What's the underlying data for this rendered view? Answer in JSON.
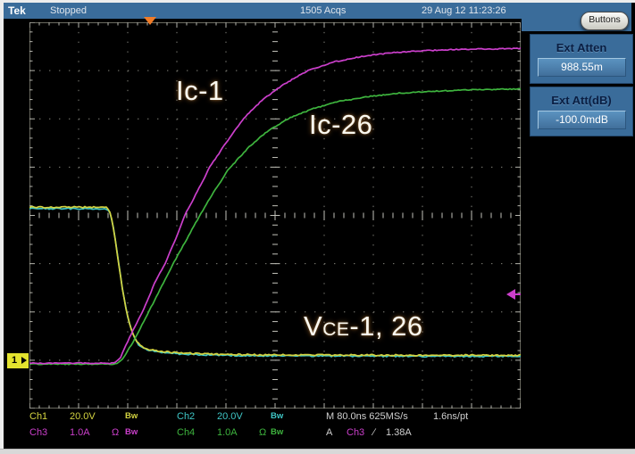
{
  "titlebar": {
    "logo": "Tek",
    "status": "Stopped",
    "acquisitions": "1505 Acqs",
    "datetime": "29 Aug 12 11:23:26",
    "buttons_label": "Buttons"
  },
  "side_panel": {
    "controls": [
      {
        "label": "Ext Atten",
        "value": "988.55m"
      },
      {
        "label": "Ext Att(dB)",
        "value": "-100.0mdB"
      }
    ]
  },
  "plot_labels": {
    "ic1": "Ic-1",
    "ic26": "Ic-26",
    "vce_v": "V",
    "vce_ce": "CE",
    "vce_rest": "-1, 26"
  },
  "markers": {
    "ch1_badge": "1"
  },
  "readouts": {
    "ch1": {
      "name": "Ch1",
      "scale": "20.0V",
      "bw": "Bw"
    },
    "ch2": {
      "name": "Ch2",
      "scale": "20.0V",
      "bw": "Bw"
    },
    "ch3": {
      "name": "Ch3",
      "scale": "1.0A",
      "coupling": "Ω",
      "bw": "Bw"
    },
    "ch4": {
      "name": "Ch4",
      "scale": "1.0A",
      "coupling": "Ω",
      "bw": "Bw"
    },
    "timebase": "M 80.0ns 625MS/s",
    "resolution": "1.6ns/pt",
    "trigger": {
      "mode": "A",
      "source": "Ch3",
      "slope": "∕",
      "level": "1.38A"
    }
  },
  "colors": {
    "ch1_yellow": "#d3d341",
    "ch2_cyan": "#3fc6c6",
    "ch3_magenta": "#cb3fcb",
    "ch4_green": "#3eb43e",
    "accent_orange": "#f07c28",
    "panel_blue": "#3a6c9a",
    "value_box_blue": "#4c86b4"
  },
  "chart_data": {
    "type": "line",
    "title": "Collector currents (Ic-1, Ic-26) and collector-emitter voltages (Vce-1, 26) at turn-on",
    "x_axis": {
      "time_per_div": "80.0ns",
      "divisions": 10,
      "sample_rate": "625MS/s",
      "resolution": "1.6ns/pt"
    },
    "y_axis": {
      "divisions": 8,
      "ch1_scale": "20.0V/div",
      "ch2_scale": "20.0V/div",
      "ch3_scale": "1.0A/div",
      "ch4_scale": "1.0A/div"
    },
    "grid": true,
    "trigger_x_div": 2.45,
    "trigger_level_div": 5.64,
    "ch1_ground_div": 7.02,
    "series": [
      {
        "name": "Vce-26",
        "channel": "Ch2",
        "color": "#3fc6c6",
        "noise": 1.2,
        "seed": 7,
        "points_div": [
          [
            0,
            3.86
          ],
          [
            1.58,
            3.86
          ],
          [
            1.64,
            3.95
          ],
          [
            1.69,
            4.15
          ],
          [
            1.74,
            4.45
          ],
          [
            1.79,
            4.8
          ],
          [
            1.84,
            5.15
          ],
          [
            1.89,
            5.5
          ],
          [
            1.94,
            5.8
          ],
          [
            1.99,
            6.05
          ],
          [
            2.06,
            6.33
          ],
          [
            2.13,
            6.53
          ],
          [
            2.21,
            6.66
          ],
          [
            2.31,
            6.75
          ],
          [
            2.46,
            6.8
          ],
          [
            2.71,
            6.84
          ],
          [
            3.1,
            6.87
          ],
          [
            3.6,
            6.89
          ],
          [
            4.2,
            6.9
          ],
          [
            5.0,
            6.91
          ],
          [
            10,
            6.92
          ]
        ]
      },
      {
        "name": "Vce-1",
        "channel": "Ch1",
        "color": "#d3d341",
        "noise": 1.2,
        "seed": 3,
        "points_div": [
          [
            0,
            3.83
          ],
          [
            1.58,
            3.83
          ],
          [
            1.63,
            3.9
          ],
          [
            1.68,
            4.1
          ],
          [
            1.73,
            4.4
          ],
          [
            1.78,
            4.75
          ],
          [
            1.83,
            5.1
          ],
          [
            1.88,
            5.45
          ],
          [
            1.93,
            5.75
          ],
          [
            1.98,
            6.0
          ],
          [
            2.05,
            6.3
          ],
          [
            2.12,
            6.5
          ],
          [
            2.2,
            6.63
          ],
          [
            2.3,
            6.72
          ],
          [
            2.45,
            6.78
          ],
          [
            2.7,
            6.82
          ],
          [
            3.1,
            6.85
          ],
          [
            3.6,
            6.87
          ],
          [
            4.2,
            6.88
          ],
          [
            5.0,
            6.89
          ],
          [
            10,
            6.9
          ]
        ]
      },
      {
        "name": "Ic-26",
        "channel": "Ch4",
        "color": "#3eb43e",
        "noise": 0.8,
        "seed": 11,
        "points_div": [
          [
            0,
            7.08
          ],
          [
            1.76,
            7.08
          ],
          [
            1.9,
            6.97
          ],
          [
            2.15,
            6.55
          ],
          [
            2.4,
            6.05
          ],
          [
            2.65,
            5.55
          ],
          [
            2.9,
            5.05
          ],
          [
            3.17,
            4.55
          ],
          [
            3.44,
            4.05
          ],
          [
            3.73,
            3.55
          ],
          [
            4.05,
            3.05
          ],
          [
            4.45,
            2.6
          ],
          [
            4.85,
            2.25
          ],
          [
            5.3,
            1.98
          ],
          [
            5.8,
            1.78
          ],
          [
            6.3,
            1.64
          ],
          [
            6.9,
            1.54
          ],
          [
            7.5,
            1.47
          ],
          [
            8.2,
            1.43
          ],
          [
            9.0,
            1.4
          ],
          [
            10,
            1.38
          ]
        ]
      },
      {
        "name": "Ic-1",
        "channel": "Ch3",
        "color": "#cb3fcb",
        "noise": 0.8,
        "seed": 5,
        "points_div": [
          [
            0,
            7.06
          ],
          [
            1.73,
            7.06
          ],
          [
            1.85,
            6.95
          ],
          [
            2.05,
            6.5
          ],
          [
            2.3,
            6.0
          ],
          [
            2.55,
            5.4
          ],
          [
            2.76,
            5.0
          ],
          [
            2.97,
            4.5
          ],
          [
            3.16,
            4.0
          ],
          [
            3.42,
            3.5
          ],
          [
            3.67,
            3.0
          ],
          [
            4.0,
            2.5
          ],
          [
            4.35,
            2.0
          ],
          [
            4.75,
            1.6
          ],
          [
            5.15,
            1.3
          ],
          [
            5.67,
            1.0
          ],
          [
            6.2,
            0.82
          ],
          [
            6.8,
            0.7
          ],
          [
            7.4,
            0.63
          ],
          [
            8.0,
            0.59
          ],
          [
            8.8,
            0.56
          ],
          [
            9.5,
            0.55
          ],
          [
            10,
            0.54
          ]
        ]
      }
    ]
  }
}
